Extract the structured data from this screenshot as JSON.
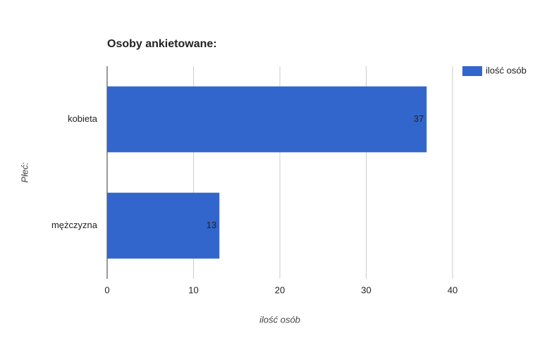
{
  "chart_data": {
    "type": "bar",
    "orientation": "horizontal",
    "title": "Osoby ankietowane:",
    "xlabel": "ilość osób",
    "ylabel": "Płeć:",
    "categories": [
      "kobieta",
      "mężczyzna"
    ],
    "series": [
      {
        "name": "ilość osób",
        "color": "#3366cc",
        "values": [
          37,
          13
        ]
      }
    ],
    "xlim": [
      0,
      40
    ],
    "xticks": [
      0,
      10,
      20,
      30,
      40
    ],
    "grid": true,
    "legend": "top-right",
    "data_labels": true
  }
}
